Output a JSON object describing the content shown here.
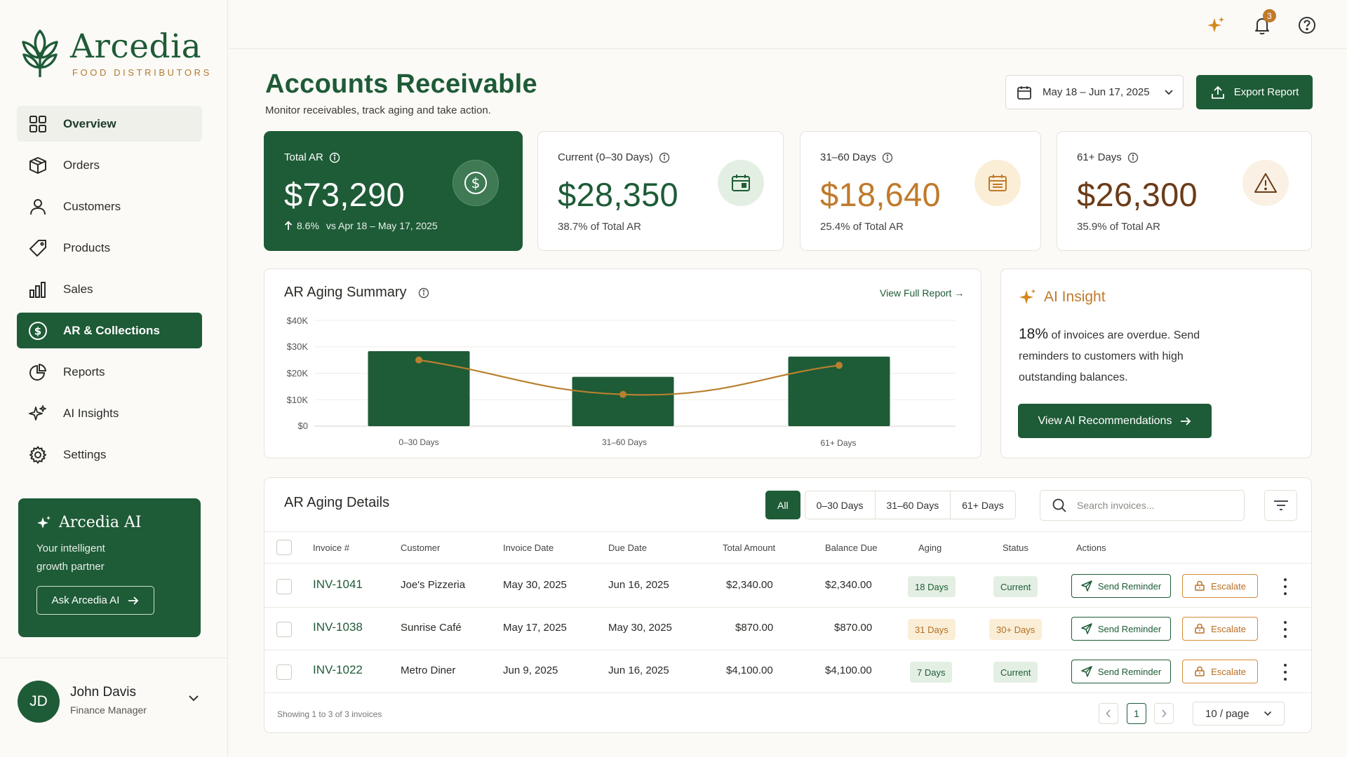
{
  "brand": {
    "name": "Arcedia",
    "tagline": "FOOD DISTRIBUTORS"
  },
  "sidebar": {
    "items": [
      {
        "label": "Overview",
        "icon": "grid-icon"
      },
      {
        "label": "Orders",
        "icon": "box-icon"
      },
      {
        "label": "Customers",
        "icon": "user-icon"
      },
      {
        "label": "Products",
        "icon": "tag-icon"
      },
      {
        "label": "Sales",
        "icon": "bar-chart-icon"
      },
      {
        "label": "AR & Collections",
        "icon": "dollar-circle-icon",
        "active": true
      },
      {
        "label": "Reports",
        "icon": "pie-chart-icon"
      },
      {
        "label": "AI Insights",
        "icon": "sparkles-icon"
      },
      {
        "label": "Settings",
        "icon": "gear-icon"
      }
    ],
    "ai_card": {
      "title": "Arcedia AI",
      "text_line1": "Your intelligent",
      "text_line2": "growth partner",
      "button": "Ask Arcedia AI"
    },
    "user": {
      "initials": "JD",
      "name": "John Davis",
      "role": "Finance Manager"
    }
  },
  "topbar": {
    "notification_count": "3"
  },
  "header": {
    "title": "Accounts Receivable",
    "subtitle": "Monitor receivables, track aging and take action.",
    "date_range": "May 18 – Jun 17, 2025",
    "export_label": "Export Report"
  },
  "kpis": {
    "total": {
      "label": "Total AR",
      "value": "$73,290",
      "change": "8.6%",
      "change_note": "vs Apr 18 – May 17, 2025"
    },
    "current": {
      "label": "Current (0–30 Days)",
      "value": "$28,350",
      "sub": "38.7% of Total AR"
    },
    "mid": {
      "label": "31–60 Days",
      "value": "$18,640",
      "sub": "25.4% of Total AR"
    },
    "late": {
      "label": "61+ Days",
      "value": "$26,300",
      "sub": "35.9% of Total AR"
    }
  },
  "aging_summary": {
    "title": "AR Aging Summary",
    "link": "View Full Report →"
  },
  "chart_data": {
    "type": "bar",
    "categories": [
      "0–30 Days",
      "31–60 Days",
      "61+ Days"
    ],
    "series": [
      {
        "type": "bar",
        "values": [
          28350,
          18640,
          26300
        ]
      },
      {
        "type": "line",
        "values": [
          25000,
          12000,
          23000
        ]
      }
    ],
    "y_ticks": [
      "$40K",
      "$30K",
      "$20K",
      "$10K",
      "$0"
    ],
    "ylim": [
      0,
      40000
    ],
    "grid": true,
    "colors": {
      "bar": "#1e5b37",
      "line": "#b8802e"
    }
  },
  "insight": {
    "title": "AI Insight",
    "highlight": "18%",
    "text": " of invoices are overdue. Send reminders to customers with high outstanding balances.",
    "button": "View AI Recommendations"
  },
  "details": {
    "title": "AR Aging Details",
    "tabs": [
      "All",
      "0–30 Days",
      "31–60 Days",
      "61+ Days"
    ],
    "search_placeholder": "Search invoices...",
    "columns": [
      "Invoice #",
      "Customer",
      "Invoice Date",
      "Due Date",
      "Total Amount",
      "Balance Due",
      "Aging",
      "Status",
      "Actions"
    ],
    "rows": [
      {
        "invoice": "INV-1041",
        "customer": "Joe's Pizzeria",
        "invoice_date": "May 30, 2025",
        "due_date": "Jun 16, 2025",
        "total": "$2,340.00",
        "balance": "$2,340.00",
        "aging": "18 Days",
        "status": "Current",
        "remind": "Send Reminder",
        "escalate": "Escalate"
      },
      {
        "invoice": "INV-1038",
        "customer": "Sunrise Café",
        "invoice_date": "May 17, 2025",
        "due_date": "May 30, 2025",
        "total": "$870.00",
        "balance": "$870.00",
        "aging": "31 Days",
        "status": "30+ Days",
        "remind": "Send Reminder",
        "escalate": "Escalate"
      },
      {
        "invoice": "INV-1022",
        "customer": "Metro Diner",
        "invoice_date": "Jun 9, 2025",
        "due_date": "Jun 16, 2025",
        "total": "$4,100.00",
        "balance": "$4,100.00",
        "aging": "7 Days",
        "status": "Current",
        "remind": "Send Reminder",
        "escalate": "Escalate"
      }
    ],
    "showing": "Showing 1 to 3 of 3 invoices",
    "page": "1",
    "per_page": "10 / page"
  }
}
